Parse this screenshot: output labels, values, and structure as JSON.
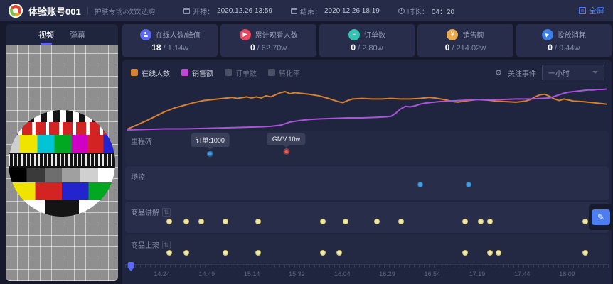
{
  "header": {
    "title": "体验账号001",
    "divider": "|",
    "subtitle": "护肤专场#欢饮选购",
    "start_label": "开播：",
    "start_value": "2020.12.26 13:59",
    "end_label": "结束：",
    "end_value": "2020.12.26 18:19",
    "duration_label": "时长：",
    "duration_value": "04：20",
    "fullscreen_label": "全屏"
  },
  "video_panel": {
    "tabs": [
      {
        "label": "视频",
        "active": true
      },
      {
        "label": "弹幕",
        "active": false
      }
    ]
  },
  "stats": [
    {
      "icon": "user-icon",
      "color": "#5b68f0",
      "label": "在线人数/峰值",
      "current": "18",
      "total": "1.14w"
    },
    {
      "icon": "view-icon",
      "color": "#e8495e",
      "label": "累计观看人数",
      "current": "0",
      "total": "62.70w"
    },
    {
      "icon": "order-icon",
      "color": "#2ec5b4",
      "label": "订单数",
      "current": "0",
      "total": "2.80w"
    },
    {
      "icon": "sales-icon",
      "color": "#eda94e",
      "label": "销售额",
      "current": "0",
      "total": "214.02w"
    },
    {
      "icon": "plane-icon",
      "color": "#3b7fe8",
      "label": "投放消耗",
      "current": "0",
      "total": "9.44w"
    }
  ],
  "chart_header": {
    "legend": [
      {
        "label": "在线人数",
        "color": "#d6812f",
        "active": true
      },
      {
        "label": "销售额",
        "color": "#c445d6",
        "active": true
      },
      {
        "label": "订单数",
        "color": "#4a5066",
        "active": false
      },
      {
        "label": "转化率",
        "color": "#4a5066",
        "active": false
      }
    ],
    "focus_label": "关注事件",
    "range_value": "一小时"
  },
  "chart_data": {
    "type": "line",
    "title": "",
    "xlabel": "time",
    "ylabel": "",
    "grid": false,
    "x_range_percent": [
      0,
      100
    ],
    "series": [
      {
        "name": "在线人数",
        "color": "#d6812f",
        "points": [
          [
            0,
            95
          ],
          [
            2,
            87
          ],
          [
            4,
            79
          ],
          [
            6,
            70
          ],
          [
            8,
            61
          ],
          [
            10,
            54
          ],
          [
            12,
            49
          ],
          [
            14,
            44
          ],
          [
            16,
            40
          ],
          [
            18,
            38
          ],
          [
            20,
            36
          ],
          [
            22,
            34
          ],
          [
            23,
            36
          ],
          [
            25,
            33
          ],
          [
            26,
            35
          ],
          [
            27,
            33
          ],
          [
            28,
            35
          ],
          [
            29,
            31
          ],
          [
            30,
            33
          ],
          [
            31,
            29
          ],
          [
            32,
            25
          ],
          [
            33,
            23
          ],
          [
            34,
            27
          ],
          [
            35,
            25
          ],
          [
            36,
            26
          ],
          [
            38,
            28
          ],
          [
            40,
            31
          ],
          [
            42,
            36
          ],
          [
            44,
            42
          ],
          [
            45,
            44
          ],
          [
            46,
            40
          ],
          [
            47,
            37
          ],
          [
            49,
            36
          ],
          [
            51,
            37
          ],
          [
            53,
            37
          ],
          [
            55,
            36
          ],
          [
            57,
            37
          ],
          [
            59,
            37
          ],
          [
            61,
            36
          ],
          [
            63,
            34
          ],
          [
            64,
            35
          ],
          [
            66,
            38
          ],
          [
            68,
            42
          ],
          [
            69,
            43
          ],
          [
            71,
            40
          ],
          [
            73,
            38
          ],
          [
            75,
            39
          ],
          [
            77,
            41
          ],
          [
            79,
            42
          ],
          [
            81,
            43
          ],
          [
            83,
            41
          ],
          [
            84,
            38
          ],
          [
            85,
            33
          ],
          [
            86,
            29
          ],
          [
            87,
            28
          ],
          [
            88,
            32
          ],
          [
            89,
            37
          ],
          [
            90,
            40
          ],
          [
            91,
            37
          ],
          [
            92,
            39
          ],
          [
            93,
            41
          ],
          [
            95,
            42
          ],
          [
            97,
            44
          ],
          [
            99,
            46
          ],
          [
            100,
            47
          ]
        ]
      },
      {
        "name": "销售额",
        "color": "#a855d8",
        "points": [
          [
            0,
            96
          ],
          [
            4,
            95
          ],
          [
            8,
            94
          ],
          [
            12,
            94
          ],
          [
            16,
            93
          ],
          [
            20,
            92
          ],
          [
            24,
            91
          ],
          [
            28,
            90
          ],
          [
            30,
            89
          ],
          [
            32,
            87
          ],
          [
            33,
            84
          ],
          [
            34,
            81
          ],
          [
            36,
            78
          ],
          [
            38,
            76
          ],
          [
            40,
            75
          ],
          [
            43,
            74
          ],
          [
            46,
            73
          ],
          [
            49,
            73
          ],
          [
            52,
            72
          ],
          [
            54,
            71
          ],
          [
            55,
            70
          ],
          [
            56,
            64
          ],
          [
            57,
            56
          ],
          [
            58,
            51
          ],
          [
            59,
            52
          ],
          [
            60,
            50
          ],
          [
            61,
            47
          ],
          [
            62,
            45
          ],
          [
            63,
            44
          ],
          [
            65,
            42
          ],
          [
            67,
            41
          ],
          [
            69,
            40
          ],
          [
            71,
            39
          ],
          [
            73,
            38
          ],
          [
            75,
            38
          ],
          [
            78,
            38
          ],
          [
            81,
            37
          ],
          [
            84,
            37
          ],
          [
            86,
            36
          ],
          [
            88,
            35
          ],
          [
            89,
            32
          ],
          [
            90,
            29
          ],
          [
            91,
            26
          ],
          [
            92,
            24
          ],
          [
            93,
            23
          ],
          [
            94,
            22
          ],
          [
            95,
            21
          ],
          [
            96,
            20
          ],
          [
            97,
            20
          ],
          [
            98,
            19
          ],
          [
            99,
            19
          ],
          [
            100,
            18
          ]
        ]
      }
    ]
  },
  "timeline": {
    "rows": {
      "milestone": {
        "label": "里程碑",
        "filter": false
      },
      "control": {
        "label": "场控",
        "filter": false
      },
      "explain": {
        "label": "商品讲解",
        "filter": true
      },
      "shelf": {
        "label": "商品上架",
        "filter": true
      }
    },
    "filter_icon_glyph": "⇅",
    "milestones": [
      {
        "tooltip": "订单:1000",
        "x": 17.6,
        "color": "#47a0e8"
      },
      {
        "tooltip": "GMV:10w",
        "x": 33.3,
        "color": "#e05f5f"
      }
    ],
    "control_dots": [
      61,
      71
    ],
    "explain_dots": [
      9.1,
      12.7,
      15.8,
      20.8,
      27.5,
      40.9,
      45.6,
      52.1,
      57.1,
      70.3,
      73.6,
      75.4,
      95.2
    ],
    "shelf_dots": [
      9.1,
      12.7,
      20.8,
      27.5,
      40.9,
      44.3,
      70.3,
      75.5,
      77.2,
      95.2
    ],
    "axis_labels": [
      {
        "t": "14:24",
        "x": 7.6
      },
      {
        "t": "14:49",
        "x": 16.9
      },
      {
        "t": "15:14",
        "x": 26.2
      },
      {
        "t": "15:39",
        "x": 35.5
      },
      {
        "t": "16:04",
        "x": 44.9
      },
      {
        "t": "16:29",
        "x": 54.2
      },
      {
        "t": "16:54",
        "x": 63.5
      },
      {
        "t": "17:19",
        "x": 72.8
      },
      {
        "t": "17:44",
        "x": 82.1
      },
      {
        "t": "18:09",
        "x": 91.4
      }
    ],
    "scrub_position": 1.2
  },
  "edit_button_glyph": "✎"
}
